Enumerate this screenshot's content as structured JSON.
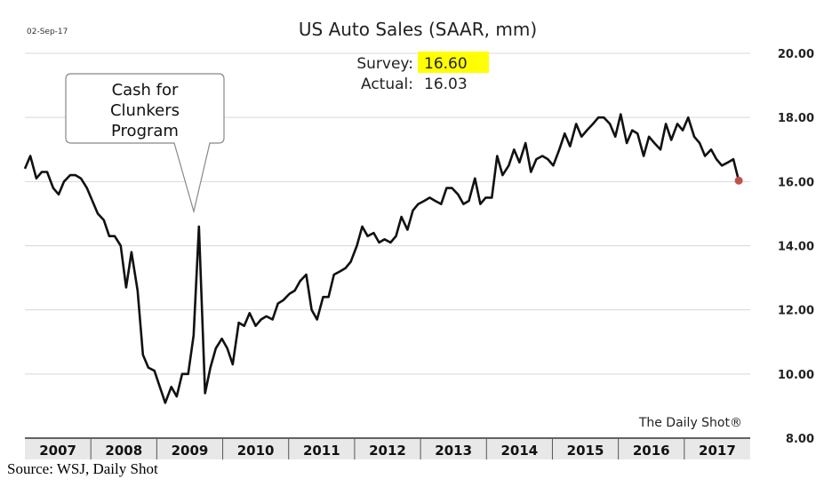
{
  "chart_data": {
    "type": "line",
    "title": "US Auto Sales (SAAR, mm)",
    "date_label": "02-Sep-17",
    "survey_label": "Survey:",
    "survey_value": "16.60",
    "actual_label": "Actual:",
    "actual_value": "16.03",
    "callout_lines": [
      "Cash for",
      "Clunkers",
      "Program"
    ],
    "brand": "The Daily Shot®",
    "x_labels": [
      "2007",
      "2008",
      "2009",
      "2010",
      "2011",
      "2012",
      "2013",
      "2014",
      "2015",
      "2016",
      "2017"
    ],
    "y_ticks": [
      "8.00",
      "10.00",
      "12.00",
      "14.00",
      "16.00",
      "18.00",
      "20.00"
    ],
    "ylim": [
      8,
      20
    ],
    "xlim": [
      2007.0,
      2017.75
    ],
    "highlight_color": "#ffff00",
    "line_color": "#111111",
    "last_point_color": "#c0504d",
    "series": [
      {
        "x": [
          2007.0,
          2007.08,
          2007.17,
          2007.25,
          2007.33,
          2007.42,
          2007.5,
          2007.58,
          2007.67,
          2007.75,
          2007.83,
          2007.92,
          2008.0,
          2008.08,
          2008.17,
          2008.25,
          2008.33,
          2008.42,
          2008.5,
          2008.58,
          2008.67,
          2008.75,
          2008.83,
          2008.92,
          2009.0,
          2009.08,
          2009.17,
          2009.25,
          2009.33,
          2009.42,
          2009.5,
          2009.58,
          2009.67,
          2009.75,
          2009.83,
          2009.92,
          2010.0,
          2010.08,
          2010.17,
          2010.25,
          2010.33,
          2010.42,
          2010.5,
          2010.58,
          2010.67,
          2010.75,
          2010.83,
          2010.92,
          2011.0,
          2011.08,
          2011.17,
          2011.25,
          2011.33,
          2011.42,
          2011.5,
          2011.58,
          2011.67,
          2011.75,
          2011.83,
          2011.92,
          2012.0,
          2012.08,
          2012.17,
          2012.25,
          2012.33,
          2012.42,
          2012.5,
          2012.58,
          2012.67,
          2012.75,
          2012.83,
          2012.92,
          2013.0,
          2013.08,
          2013.17,
          2013.25,
          2013.33,
          2013.42,
          2013.5,
          2013.58,
          2013.67,
          2013.75,
          2013.83,
          2013.92,
          2014.0,
          2014.08,
          2014.17,
          2014.25,
          2014.33,
          2014.42,
          2014.5,
          2014.58,
          2014.67,
          2014.75,
          2014.83,
          2014.92,
          2015.0,
          2015.08,
          2015.17,
          2015.25,
          2015.33,
          2015.42,
          2015.5,
          2015.58,
          2015.67,
          2015.75,
          2015.83,
          2015.92,
          2016.0,
          2016.08,
          2016.17,
          2016.25,
          2016.33,
          2016.42,
          2016.5,
          2016.58,
          2016.67,
          2016.75,
          2016.83,
          2016.92,
          2017.0,
          2017.08,
          2017.17,
          2017.25,
          2017.33,
          2017.42,
          2017.5,
          2017.58
        ],
        "y": [
          16.4,
          16.8,
          16.1,
          16.3,
          16.3,
          15.8,
          15.6,
          16.0,
          16.2,
          16.2,
          16.1,
          15.8,
          15.4,
          15.0,
          14.8,
          14.3,
          14.3,
          14.0,
          12.7,
          13.8,
          12.6,
          10.6,
          10.2,
          10.1,
          9.6,
          9.1,
          9.6,
          9.3,
          10.0,
          10.0,
          11.2,
          14.6,
          9.4,
          10.2,
          10.8,
          11.1,
          10.8,
          10.3,
          11.6,
          11.5,
          11.9,
          11.5,
          11.7,
          11.8,
          11.7,
          12.2,
          12.3,
          12.5,
          12.6,
          12.9,
          13.1,
          12.0,
          11.7,
          12.4,
          12.4,
          13.1,
          13.2,
          13.3,
          13.5,
          14.0,
          14.6,
          14.3,
          14.4,
          14.1,
          14.2,
          14.1,
          14.3,
          14.9,
          14.5,
          15.1,
          15.3,
          15.4,
          15.5,
          15.4,
          15.3,
          15.8,
          15.8,
          15.6,
          15.3,
          15.4,
          16.1,
          15.3,
          15.5,
          15.5,
          16.8,
          16.2,
          16.5,
          17.0,
          16.6,
          17.2,
          16.3,
          16.7,
          16.8,
          16.7,
          16.5,
          17.0,
          17.5,
          17.1,
          17.8,
          17.4,
          17.6,
          17.8,
          18.0,
          18.0,
          17.8,
          17.4,
          18.1,
          17.2,
          17.6,
          17.5,
          16.8,
          17.4,
          17.2,
          17.0,
          17.8,
          17.3,
          17.8,
          17.6,
          18.0,
          17.4,
          17.2,
          16.8,
          17.0,
          16.7,
          16.5,
          16.6,
          16.7,
          16.03
        ]
      }
    ]
  }
}
